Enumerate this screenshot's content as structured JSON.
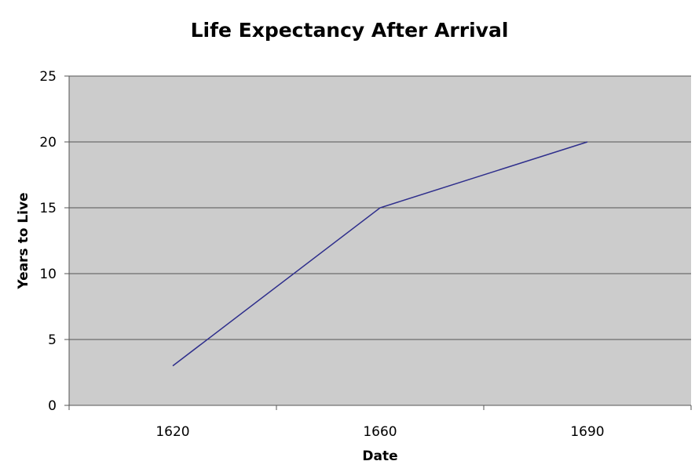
{
  "chart_data": {
    "type": "line",
    "title": "Life Expectancy After Arrival",
    "xlabel": "Date",
    "ylabel": "Years to Live",
    "categories": [
      "1620",
      "1660",
      "1690"
    ],
    "series": [
      {
        "values": [
          3,
          15,
          20
        ],
        "color": "#2e2e8c"
      }
    ],
    "ylim": [
      0,
      25
    ],
    "yticks": [
      0,
      5,
      10,
      15,
      20,
      25
    ],
    "grid": true,
    "legend": "none",
    "plot_background": "#cccccc",
    "gridline_color": "#555555"
  }
}
